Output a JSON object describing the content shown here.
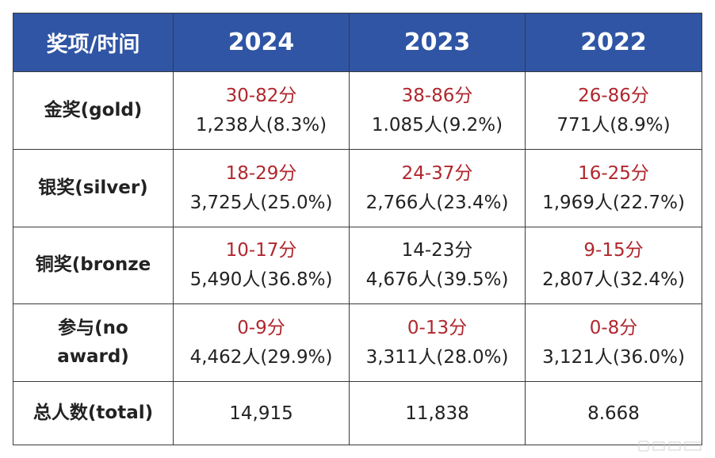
{
  "header": {
    "corner_label": "奖项/时间",
    "years": [
      "2024",
      "2023",
      "2022"
    ]
  },
  "rows": [
    {
      "label_line1": "金奖(gold)",
      "label_line2": "",
      "cells": [
        {
          "score": "30-82分",
          "count": "1,238人(8.3%)",
          "score_color": "red"
        },
        {
          "score": "38-86分",
          "count": "1.085人(9.2%)",
          "score_color": "red"
        },
        {
          "score": "26-86分",
          "count": "771人(8.9%)",
          "score_color": "red"
        }
      ]
    },
    {
      "label_line1": "银奖(silver)",
      "label_line2": "",
      "cells": [
        {
          "score": "18-29分",
          "count": "3,725人(25.0%)",
          "score_color": "red"
        },
        {
          "score": "24-37分",
          "count": "2,766人(23.4%)",
          "score_color": "red"
        },
        {
          "score": "16-25分",
          "count": "1,969人(22.7%)",
          "score_color": "red"
        }
      ]
    },
    {
      "label_line1": "铜奖(bronze",
      "label_line2": "",
      "cells": [
        {
          "score": "10-17分",
          "count": "5,490人(36.8%)",
          "score_color": "red"
        },
        {
          "score": "14-23分",
          "count": "4,676人(39.5%)",
          "score_color": "black"
        },
        {
          "score": "9-15分",
          "count": "2,807人(32.4%)",
          "score_color": "red"
        }
      ]
    },
    {
      "label_line1": "参与(no",
      "label_line2": "award)",
      "cells": [
        {
          "score": "0-9分",
          "count": "4,462人(29.9%)",
          "score_color": "red"
        },
        {
          "score": "0-13分",
          "count": "3,311人(28.0%)",
          "score_color": "red"
        },
        {
          "score": "0-8分",
          "count": "3,121人(36.0%)",
          "score_color": "red"
        }
      ]
    }
  ],
  "total": {
    "label": "总人数(total)",
    "values": [
      "14,915",
      "11,838",
      "8.668"
    ]
  },
  "colors": {
    "header_bg": "#2f55a4",
    "score_red": "#b0272d",
    "text": "#222222"
  }
}
